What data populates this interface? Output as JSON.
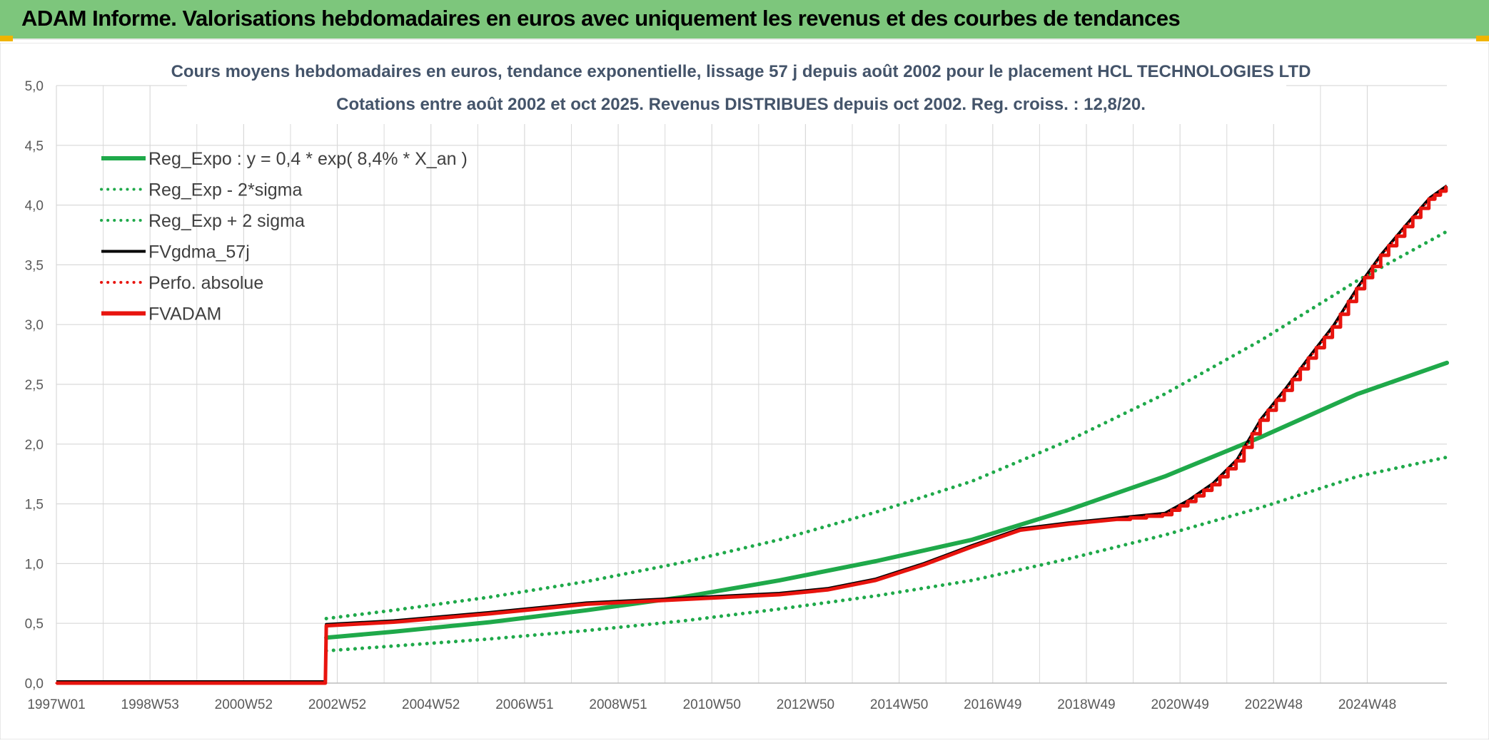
{
  "banner": {
    "title": "ADAM Informe. Valorisations hebdomadaires en euros avec uniquement les revenus et des courbes de tendances"
  },
  "colors": {
    "banner_bg": "#7dc67c",
    "trend_green": "#1fa94a",
    "band_green": "#1fa94a",
    "fvgdma": "#000000",
    "fvadam": "#e8140e",
    "perfo": "#e8140e",
    "grid": "#d9d9d9"
  },
  "chart_data": {
    "type": "line",
    "title_line1": "Cours moyens hebdomadaires en euros, tendance exponentielle, lissage 57 j depuis août 2002 pour le placement HCL TECHNOLOGIES LTD",
    "title_line2": "Cotations entre août 2002 et oct 2025. Revenus DISTRIBUES depuis oct 2002. Reg. croiss. : 12,8/20.",
    "x_tick_labels": [
      "1997W01",
      "1998W53",
      "2000W52",
      "2002W52",
      "2004W52",
      "2006W51",
      "2008W51",
      "2010W50",
      "2012W50",
      "2014W50",
      "2016W49",
      "2018W49",
      "2020W49",
      "2022W48",
      "2024W48"
    ],
    "x_range": [
      1997.0,
      2025.85
    ],
    "ylim": [
      0,
      5
    ],
    "y_ticks": [
      0,
      0.5,
      1,
      1.5,
      2,
      2.5,
      3,
      3.5,
      4,
      4.5,
      5
    ],
    "y_tick_labels": [
      "0,0",
      "0,5",
      "1,0",
      "1,5",
      "2,0",
      "2,5",
      "3,0",
      "3,5",
      "4,0",
      "4,5",
      "5,0"
    ],
    "grid": true,
    "legend_position": "top-left",
    "legend": [
      {
        "label": "Reg_Expo : y = 0,4 * exp( 8,4% *  X_an )",
        "style": "solid-thick",
        "color": "#1fa94a"
      },
      {
        "label": "Reg_Exp - 2*sigma",
        "style": "dotted",
        "color": "#1fa94a"
      },
      {
        "label": "Reg_Exp + 2 sigma",
        "style": "dotted",
        "color": "#1fa94a"
      },
      {
        "label": "FVgdma_57j",
        "style": "solid",
        "color": "#000000"
      },
      {
        "label": "Perfo. absolue",
        "style": "dotted",
        "color": "#e8140e"
      },
      {
        "label": "FVADAM",
        "style": "solid-thick",
        "color": "#e8140e"
      }
    ],
    "series": [
      {
        "name": "Reg_Expo : y = 0,4 * exp( 8,4% *  X_an )",
        "x": [
          2002.6,
          2004,
          2006,
          2008,
          2010,
          2012,
          2014,
          2016,
          2018,
          2020,
          2022,
          2024,
          2025.85
        ],
        "y": [
          0.38,
          0.43,
          0.51,
          0.61,
          0.72,
          0.86,
          1.02,
          1.2,
          1.45,
          1.73,
          2.06,
          2.42,
          2.68
        ]
      },
      {
        "name": "Reg_Exp - 2*sigma",
        "x": [
          2002.6,
          2004,
          2006,
          2008,
          2010,
          2012,
          2014,
          2016,
          2018,
          2020,
          2022,
          2024,
          2025.85
        ],
        "y": [
          0.27,
          0.31,
          0.37,
          0.44,
          0.52,
          0.62,
          0.73,
          0.86,
          1.04,
          1.24,
          1.47,
          1.73,
          1.89
        ]
      },
      {
        "name": "Reg_Exp + 2 sigma",
        "x": [
          2002.6,
          2004,
          2006,
          2008,
          2010,
          2012,
          2014,
          2016,
          2018,
          2020,
          2022,
          2024,
          2025.85
        ],
        "y": [
          0.54,
          0.61,
          0.72,
          0.85,
          1.01,
          1.2,
          1.43,
          1.69,
          2.03,
          2.42,
          2.87,
          3.37,
          3.78
        ]
      },
      {
        "name": "FVgdma_57j",
        "x": [
          1997.0,
          2002.58,
          2002.6,
          2004,
          2006,
          2008,
          2010,
          2012,
          2013,
          2014,
          2015,
          2016,
          2017,
          2018,
          2019,
          2020,
          2020.5,
          2021,
          2021.5,
          2022,
          2022.5,
          2023,
          2023.5,
          2024,
          2024.5,
          2025,
          2025.5,
          2025.85
        ],
        "y": [
          0,
          0,
          0.48,
          0.51,
          0.58,
          0.66,
          0.7,
          0.74,
          0.78,
          0.86,
          0.99,
          1.14,
          1.28,
          1.33,
          1.37,
          1.41,
          1.52,
          1.66,
          1.86,
          2.2,
          2.45,
          2.72,
          2.98,
          3.3,
          3.58,
          3.82,
          4.05,
          4.15
        ]
      },
      {
        "name": "Perfo. absolue",
        "x": [
          1997.0,
          2002.58,
          2002.6,
          2004,
          2006,
          2008,
          2010,
          2012,
          2013,
          2014,
          2015,
          2016,
          2017,
          2018,
          2019,
          2020,
          2020.5,
          2021,
          2021.5,
          2022,
          2022.5,
          2023,
          2023.5,
          2024,
          2024.5,
          2025,
          2025.5,
          2025.85
        ],
        "y": [
          0,
          0,
          0.48,
          0.51,
          0.58,
          0.66,
          0.7,
          0.74,
          0.78,
          0.86,
          0.99,
          1.14,
          1.28,
          1.33,
          1.37,
          1.41,
          1.52,
          1.66,
          1.86,
          2.2,
          2.45,
          2.72,
          2.98,
          3.3,
          3.58,
          3.82,
          4.05,
          4.15
        ]
      },
      {
        "name": "FVADAM",
        "x": [
          1997.0,
          2002.58,
          2002.6,
          2004,
          2006,
          2008,
          2010,
          2012,
          2013,
          2014,
          2015,
          2016,
          2017,
          2018,
          2019,
          2020,
          2020.5,
          2021,
          2021.5,
          2022,
          2022.5,
          2023,
          2023.5,
          2024,
          2024.5,
          2025,
          2025.5,
          2025.85
        ],
        "y": [
          0,
          0,
          0.48,
          0.51,
          0.58,
          0.66,
          0.7,
          0.74,
          0.78,
          0.86,
          0.99,
          1.14,
          1.28,
          1.33,
          1.37,
          1.41,
          1.52,
          1.66,
          1.86,
          2.2,
          2.45,
          2.72,
          2.98,
          3.3,
          3.58,
          3.82,
          4.05,
          4.15
        ]
      }
    ]
  }
}
